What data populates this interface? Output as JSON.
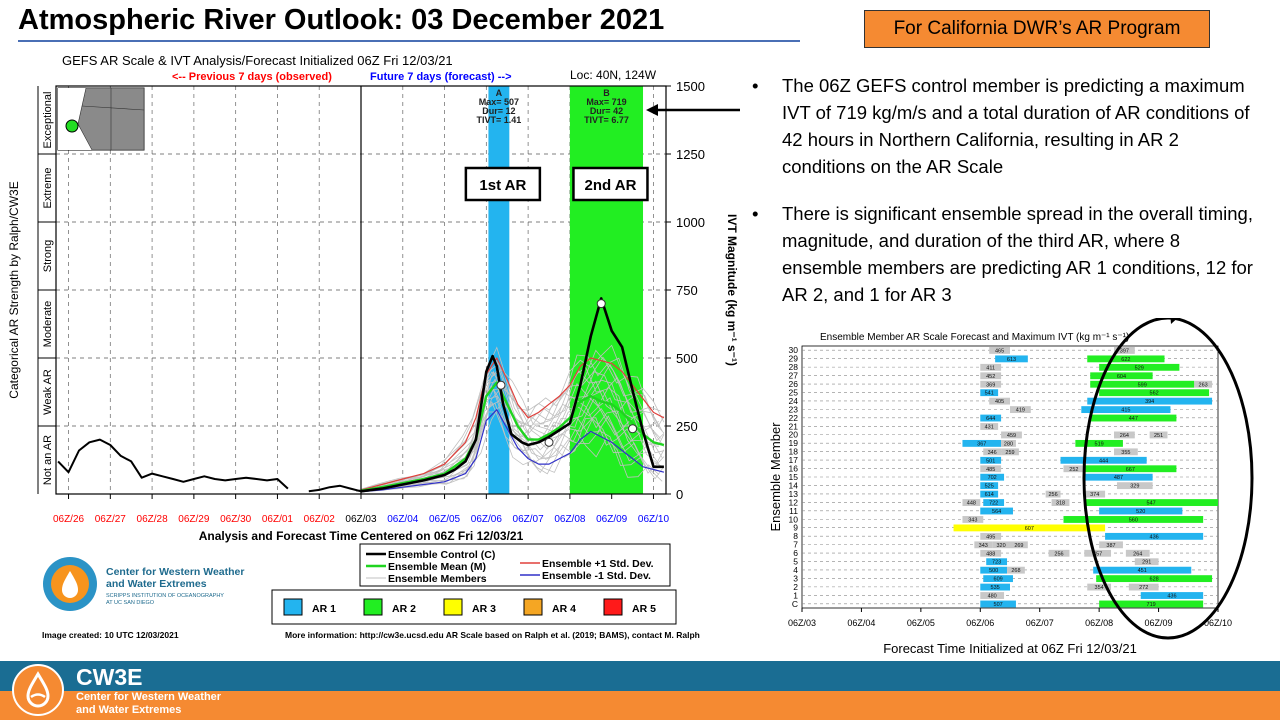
{
  "slide": {
    "title": "Atmospheric River Outlook: 03 December 2021",
    "badge": "For California DWR’s AR Program",
    "bullets": [
      "The 06Z GEFS control member  is predicting a maximum  IVT of 719 kg/m/s and a total duration of AR conditions of 42 hours in Northern California, resulting in AR 2 conditions on the AR Scale",
      "There is significant ensemble spread in the overall timing, magnitude, and duration of the third AR, where 8 ensemble members are predicting AR 1 conditions, 12 for AR 2, and 1 for AR 3"
    ],
    "bullet_symbol": "•"
  },
  "colors": {
    "ar1": "#23b4ef",
    "ar2": "#22ee22",
    "ar3": "#ffff00",
    "ar4": "#f5a623",
    "ar5": "#ff1a1a",
    "mean_line": "#1fd41f",
    "plus_line": "#e0403c",
    "minus_line": "#3030c8",
    "ens_gray": "#c0c0c0",
    "observed": "#ff0000",
    "forecast": "#0000ff",
    "footer_orange": "#f58a32",
    "footer_blue": "#1a6d93"
  },
  "footer": {
    "brand": "CW3E",
    "org_line1": "Center for Western Weather",
    "org_line2": "and Water Extremes"
  },
  "chart_data": [
    {
      "type": "line",
      "title": "GEFS AR Scale & IVT Analysis/Forecast Initialized 06Z Fri 12/03/21",
      "observed_label": "<-- Previous 7 days (observed)",
      "forecast_label": "Future 7 days (forecast) -->",
      "location": "Loc: 40N, 124W",
      "xlabel": "Analysis and Forecast Time Centered on 06Z Fri 12/03/21",
      "ylabel_left": "Categorical AR Strength by Ralph/CW3E",
      "ylabel_right": "IVT Magnitude (kg m⁻¹ s⁻¹)",
      "x_ticks": [
        "06Z/26",
        "06Z/27",
        "06Z/28",
        "06Z/29",
        "06Z/30",
        "06Z/01",
        "06Z/02",
        "06Z/03",
        "06Z/04",
        "06Z/05",
        "06Z/06",
        "06Z/07",
        "06Z/08",
        "06Z/09",
        "06Z/10"
      ],
      "xlim_days": [
        -7.3,
        7.3
      ],
      "ylim": [
        0,
        1500
      ],
      "y_ticks": [
        0,
        250,
        500,
        750,
        1000,
        1250,
        1500
      ],
      "categories_left": [
        "Not an AR",
        "Weak AR",
        "Moderate",
        "Strong",
        "Extreme",
        "Exceptional"
      ],
      "ar_events": [
        {
          "letter": "A",
          "max": "Max= 507",
          "dur": "Dur= 12",
          "tivt": "TIVT= 1.41",
          "start_day": 3.05,
          "end_day": 3.55,
          "level": 1,
          "callout": "1st AR"
        },
        {
          "letter": "B",
          "max": "Max= 719",
          "dur": "Dur= 42",
          "tivt": "TIVT= 6.77",
          "start_day": 5.0,
          "end_day": 6.75,
          "level": 2,
          "callout": "2nd AR"
        }
      ],
      "series": [
        {
          "name": "Observed",
          "x": [
            -7.25,
            -7.0,
            -6.75,
            -6.5,
            -6.25,
            -6.0,
            -5.75,
            -5.5,
            -5.25,
            -5.0,
            -4.75,
            -4.5,
            -4.25,
            -4.0,
            -3.75,
            -3.5,
            -3.25,
            -3.0,
            -2.75,
            -2.5,
            -2.25,
            -2.0,
            -1.75,
            -1.5,
            -1.25,
            -1.0,
            -0.75,
            -0.5,
            -0.25,
            0.0
          ],
          "values": [
            120,
            80,
            160,
            190,
            200,
            180,
            140,
            120,
            60,
            75,
            65,
            55,
            45,
            55,
            65,
            55,
            50,
            55,
            60,
            55,
            50,
            55,
            20,
            null,
            10,
            15,
            25,
            30,
            20,
            10
          ]
        },
        {
          "name": "Ensemble Control (C)",
          "x": [
            0,
            0.5,
            1.0,
            1.5,
            2.0,
            2.25,
            2.5,
            2.75,
            3.0,
            3.15,
            3.25,
            3.4,
            3.6,
            3.85,
            4.0,
            4.25,
            4.5,
            4.75,
            5.0,
            5.25,
            5.5,
            5.75,
            6.0,
            6.25,
            6.5,
            6.75,
            7.0,
            7.25
          ],
          "values": [
            10,
            20,
            35,
            50,
            70,
            90,
            120,
            200,
            450,
            507,
            470,
            330,
            220,
            190,
            180,
            190,
            210,
            235,
            260,
            400,
            580,
            719,
            600,
            540,
            380,
            230,
            100,
            100
          ]
        },
        {
          "name": "Ensemble Mean (M)",
          "x": [
            0,
            0.5,
            1.0,
            1.5,
            2.0,
            2.5,
            2.75,
            3.0,
            3.25,
            3.5,
            3.75,
            4.0,
            4.25,
            4.5,
            4.75,
            5.0,
            5.25,
            5.5,
            5.75,
            6.0,
            6.25,
            6.5,
            6.75,
            7.0,
            7.25
          ],
          "values": [
            12,
            25,
            40,
            55,
            75,
            130,
            200,
            360,
            410,
            330,
            250,
            200,
            200,
            220,
            245,
            280,
            340,
            360,
            340,
            330,
            300,
            260,
            220,
            190,
            180
          ]
        },
        {
          "name": "Ensemble +1 Std. Dev.",
          "x": [
            0,
            0.5,
            1.0,
            1.5,
            2.0,
            2.5,
            2.75,
            3.0,
            3.25,
            3.5,
            3.75,
            4.0,
            4.25,
            4.5,
            4.75,
            5.0,
            5.25,
            5.5,
            5.75,
            6.0,
            6.25,
            6.5,
            6.75,
            7.0,
            7.25
          ],
          "values": [
            15,
            35,
            55,
            75,
            110,
            190,
            280,
            440,
            500,
            420,
            330,
            280,
            300,
            330,
            360,
            400,
            470,
            500,
            490,
            480,
            450,
            400,
            350,
            300,
            280
          ]
        },
        {
          "name": "Ensemble -1 Std. Dev.",
          "x": [
            0,
            0.5,
            1.0,
            1.5,
            2.0,
            2.5,
            2.75,
            3.0,
            3.25,
            3.5,
            3.75,
            4.0,
            4.25,
            4.5,
            4.75,
            5.0,
            5.25,
            5.5,
            5.75,
            6.0,
            6.25,
            6.5,
            6.75,
            7.0,
            7.25
          ],
          "values": [
            8,
            15,
            25,
            35,
            45,
            75,
            130,
            270,
            310,
            240,
            170,
            130,
            110,
            110,
            130,
            150,
            200,
            230,
            210,
            190,
            160,
            130,
            100,
            90,
            80
          ]
        }
      ],
      "legend": {
        "control": "Ensemble Control (C)",
        "mean": "Ensemble Mean (M)",
        "members": "Ensemble Members",
        "plus": "Ensemble +1 Std. Dev.",
        "minus": "Ensemble -1 Std. Dev."
      },
      "ar_legend": [
        "AR 1",
        "AR 2",
        "AR 3",
        "AR 4",
        "AR 5"
      ],
      "image_created": "Image created: 10 UTC 12/03/2021",
      "more_info": "More information: http://cw3e.ucsd.edu  AR Scale based on Ralph et al. (2019; BAMS), contact M. Ralph",
      "logo_line1": "Center for Western Weather",
      "logo_line2": "and Water Extremes",
      "logo_line3": "SCRIPPS INSTITUTION OF OCEANOGRAPHY",
      "logo_line4": "AT UC SAN DIEGO"
    },
    {
      "type": "bar",
      "title": "Ensemble Member AR Scale Forecast and Maximum IVT (kg m⁻¹ s⁻¹)",
      "xlabel": "Forecast Time Initialized at 06Z Fri 12/03/21",
      "ylabel": "Ensemble Member",
      "x_ticks": [
        "06Z/03",
        "06Z/04",
        "06Z/05",
        "06Z/06",
        "06Z/07",
        "06Z/08",
        "06Z/09",
        "06Z/10"
      ],
      "xlim_days": [
        0,
        7
      ],
      "members": [
        "C",
        "1",
        "2",
        "3",
        "4",
        "5",
        "6",
        "7",
        "8",
        "9",
        "10",
        "11",
        "12",
        "13",
        "14",
        "15",
        "16",
        "17",
        "18",
        "19",
        "20",
        "21",
        "22",
        "23",
        "24",
        "25",
        "26",
        "27",
        "28",
        "29",
        "30"
      ],
      "segments": [
        {
          "member": "C",
          "start": 3.0,
          "end": 3.6,
          "level": 1,
          "label": "507"
        },
        {
          "member": "C",
          "start": 5.0,
          "end": 6.75,
          "level": 2,
          "label": "719"
        },
        {
          "member": "1",
          "start": 3.0,
          "end": 3.4,
          "level": 0,
          "label": "480"
        },
        {
          "member": "1",
          "start": 5.7,
          "end": 6.75,
          "level": 1,
          "label": "436"
        },
        {
          "member": "2",
          "start": 3.0,
          "end": 3.5,
          "level": 1,
          "label": "535"
        },
        {
          "member": "2",
          "start": 4.8,
          "end": 5.2,
          "level": 0,
          "label": "354"
        },
        {
          "member": "2",
          "start": 5.5,
          "end": 6.0,
          "level": 0,
          "label": "272"
        },
        {
          "member": "3",
          "start": 3.05,
          "end": 3.55,
          "level": 1,
          "label": "609"
        },
        {
          "member": "3",
          "start": 4.95,
          "end": 6.9,
          "level": 2,
          "label": "628"
        },
        {
          "member": "4",
          "start": 3.0,
          "end": 3.45,
          "level": 1,
          "label": "500"
        },
        {
          "member": "4",
          "start": 3.45,
          "end": 3.75,
          "level": 0,
          "label": "268"
        },
        {
          "member": "4",
          "start": 4.9,
          "end": 6.55,
          "level": 1,
          "label": "451"
        },
        {
          "member": "5",
          "start": 3.1,
          "end": 3.45,
          "level": 1,
          "label": "723"
        },
        {
          "member": "5",
          "start": 5.6,
          "end": 6.0,
          "level": 0,
          "label": "291"
        },
        {
          "member": "6",
          "start": 3.0,
          "end": 3.35,
          "level": 0,
          "label": "488"
        },
        {
          "member": "6",
          "start": 4.15,
          "end": 4.5,
          "level": 0,
          "label": "256"
        },
        {
          "member": "6",
          "start": 4.75,
          "end": 5.2,
          "level": 0,
          "label": "457"
        },
        {
          "member": "6",
          "start": 5.45,
          "end": 5.85,
          "level": 0,
          "label": "264"
        },
        {
          "member": "7",
          "start": 2.9,
          "end": 3.2,
          "level": 0,
          "label": "343"
        },
        {
          "member": "7",
          "start": 3.2,
          "end": 3.5,
          "level": 0,
          "label": "320"
        },
        {
          "member": "7",
          "start": 3.5,
          "end": 3.8,
          "level": 0,
          "label": "269"
        },
        {
          "member": "7",
          "start": 5.0,
          "end": 5.4,
          "level": 0,
          "label": "387"
        },
        {
          "member": "8",
          "start": 3.0,
          "end": 3.35,
          "level": 0,
          "label": "495"
        },
        {
          "member": "8",
          "start": 5.1,
          "end": 6.75,
          "level": 1,
          "label": "436"
        },
        {
          "member": "9",
          "start": 2.55,
          "end": 5.1,
          "level": 3,
          "label": "607"
        },
        {
          "member": "10",
          "start": 2.7,
          "end": 3.05,
          "level": 0,
          "label": "343"
        },
        {
          "member": "10",
          "start": 4.4,
          "end": 6.75,
          "level": 2,
          "label": "560"
        },
        {
          "member": "11",
          "start": 3.0,
          "end": 3.55,
          "level": 1,
          "label": "564"
        },
        {
          "member": "11",
          "start": 5.0,
          "end": 6.4,
          "level": 1,
          "label": "520"
        },
        {
          "member": "12",
          "start": 2.7,
          "end": 3.0,
          "level": 0,
          "label": "448"
        },
        {
          "member": "12",
          "start": 3.05,
          "end": 3.4,
          "level": 1,
          "label": "722"
        },
        {
          "member": "12",
          "start": 4.2,
          "end": 4.5,
          "level": 0,
          "label": "318"
        },
        {
          "member": "12",
          "start": 4.75,
          "end": 7.0,
          "level": 2,
          "label": "547"
        },
        {
          "member": "13",
          "start": 3.0,
          "end": 3.3,
          "level": 1,
          "label": "614"
        },
        {
          "member": "13",
          "start": 4.1,
          "end": 4.35,
          "level": 0,
          "label": "256"
        },
        {
          "member": "13",
          "start": 4.75,
          "end": 5.1,
          "level": 0,
          "label": "374"
        },
        {
          "member": "14",
          "start": 3.0,
          "end": 3.3,
          "level": 1,
          "label": "525"
        },
        {
          "member": "14",
          "start": 5.3,
          "end": 5.9,
          "level": 0,
          "label": "329"
        },
        {
          "member": "15",
          "start": 3.0,
          "end": 3.4,
          "level": 1,
          "label": "702"
        },
        {
          "member": "15",
          "start": 4.75,
          "end": 5.9,
          "level": 1,
          "label": "487"
        },
        {
          "member": "16",
          "start": 3.0,
          "end": 3.35,
          "level": 0,
          "label": "485"
        },
        {
          "member": "16",
          "start": 4.4,
          "end": 4.75,
          "level": 0,
          "label": "252"
        },
        {
          "member": "16",
          "start": 4.75,
          "end": 6.3,
          "level": 2,
          "label": "667"
        },
        {
          "member": "17",
          "start": 3.0,
          "end": 3.35,
          "level": 1,
          "label": "501"
        },
        {
          "member": "17",
          "start": 4.35,
          "end": 5.8,
          "level": 1,
          "label": "444"
        },
        {
          "member": "18",
          "start": 3.05,
          "end": 3.35,
          "level": 0,
          "label": "346"
        },
        {
          "member": "18",
          "start": 3.35,
          "end": 3.65,
          "level": 0,
          "label": "259"
        },
        {
          "member": "18",
          "start": 5.25,
          "end": 5.65,
          "level": 0,
          "label": "355"
        },
        {
          "member": "19",
          "start": 2.7,
          "end": 3.35,
          "level": 1,
          "label": "367"
        },
        {
          "member": "19",
          "start": 3.35,
          "end": 3.6,
          "level": 0,
          "label": "280"
        },
        {
          "member": "19",
          "start": 4.6,
          "end": 5.4,
          "level": 2,
          "label": "519"
        },
        {
          "member": "20",
          "start": 3.35,
          "end": 3.7,
          "level": 0,
          "label": "459"
        },
        {
          "member": "20",
          "start": 5.25,
          "end": 5.6,
          "level": 0,
          "label": "264"
        },
        {
          "member": "20",
          "start": 5.85,
          "end": 6.15,
          "level": 0,
          "label": "251"
        },
        {
          "member": "21",
          "start": 3.0,
          "end": 3.3,
          "level": 0,
          "label": "431"
        },
        {
          "member": "22",
          "start": 3.0,
          "end": 3.35,
          "level": 1,
          "label": "644"
        },
        {
          "member": "22",
          "start": 4.85,
          "end": 6.3,
          "level": 2,
          "label": "447"
        },
        {
          "member": "23",
          "start": 3.5,
          "end": 3.85,
          "level": 0,
          "label": "419"
        },
        {
          "member": "23",
          "start": 4.7,
          "end": 6.2,
          "level": 1,
          "label": "415"
        },
        {
          "member": "24",
          "start": 3.15,
          "end": 3.5,
          "level": 0,
          "label": "405"
        },
        {
          "member": "24",
          "start": 4.8,
          "end": 6.9,
          "level": 1,
          "label": "394"
        },
        {
          "member": "25",
          "start": 3.0,
          "end": 3.3,
          "level": 1,
          "label": "541"
        },
        {
          "member": "25",
          "start": 5.0,
          "end": 6.85,
          "level": 2,
          "label": "562"
        },
        {
          "member": "26",
          "start": 3.0,
          "end": 3.35,
          "level": 0,
          "label": "369"
        },
        {
          "member": "26",
          "start": 4.85,
          "end": 6.6,
          "level": 2,
          "label": "599"
        },
        {
          "member": "26",
          "start": 6.6,
          "end": 6.9,
          "level": 0,
          "label": "263"
        },
        {
          "member": "27",
          "start": 3.0,
          "end": 3.35,
          "level": 0,
          "label": "452"
        },
        {
          "member": "27",
          "start": 4.85,
          "end": 5.9,
          "level": 2,
          "label": "604"
        },
        {
          "member": "28",
          "start": 3.0,
          "end": 3.35,
          "level": 0,
          "label": "411"
        },
        {
          "member": "28",
          "start": 5.0,
          "end": 6.35,
          "level": 2,
          "label": "529"
        },
        {
          "member": "29",
          "start": 3.25,
          "end": 3.8,
          "level": 1,
          "label": "613"
        },
        {
          "member": "29",
          "start": 4.8,
          "end": 6.1,
          "level": 2,
          "label": "622"
        },
        {
          "member": "30",
          "start": 3.15,
          "end": 3.5,
          "level": 0,
          "label": "465"
        },
        {
          "member": "30",
          "start": 5.25,
          "end": 5.6,
          "level": 0,
          "label": "397"
        }
      ]
    }
  ]
}
